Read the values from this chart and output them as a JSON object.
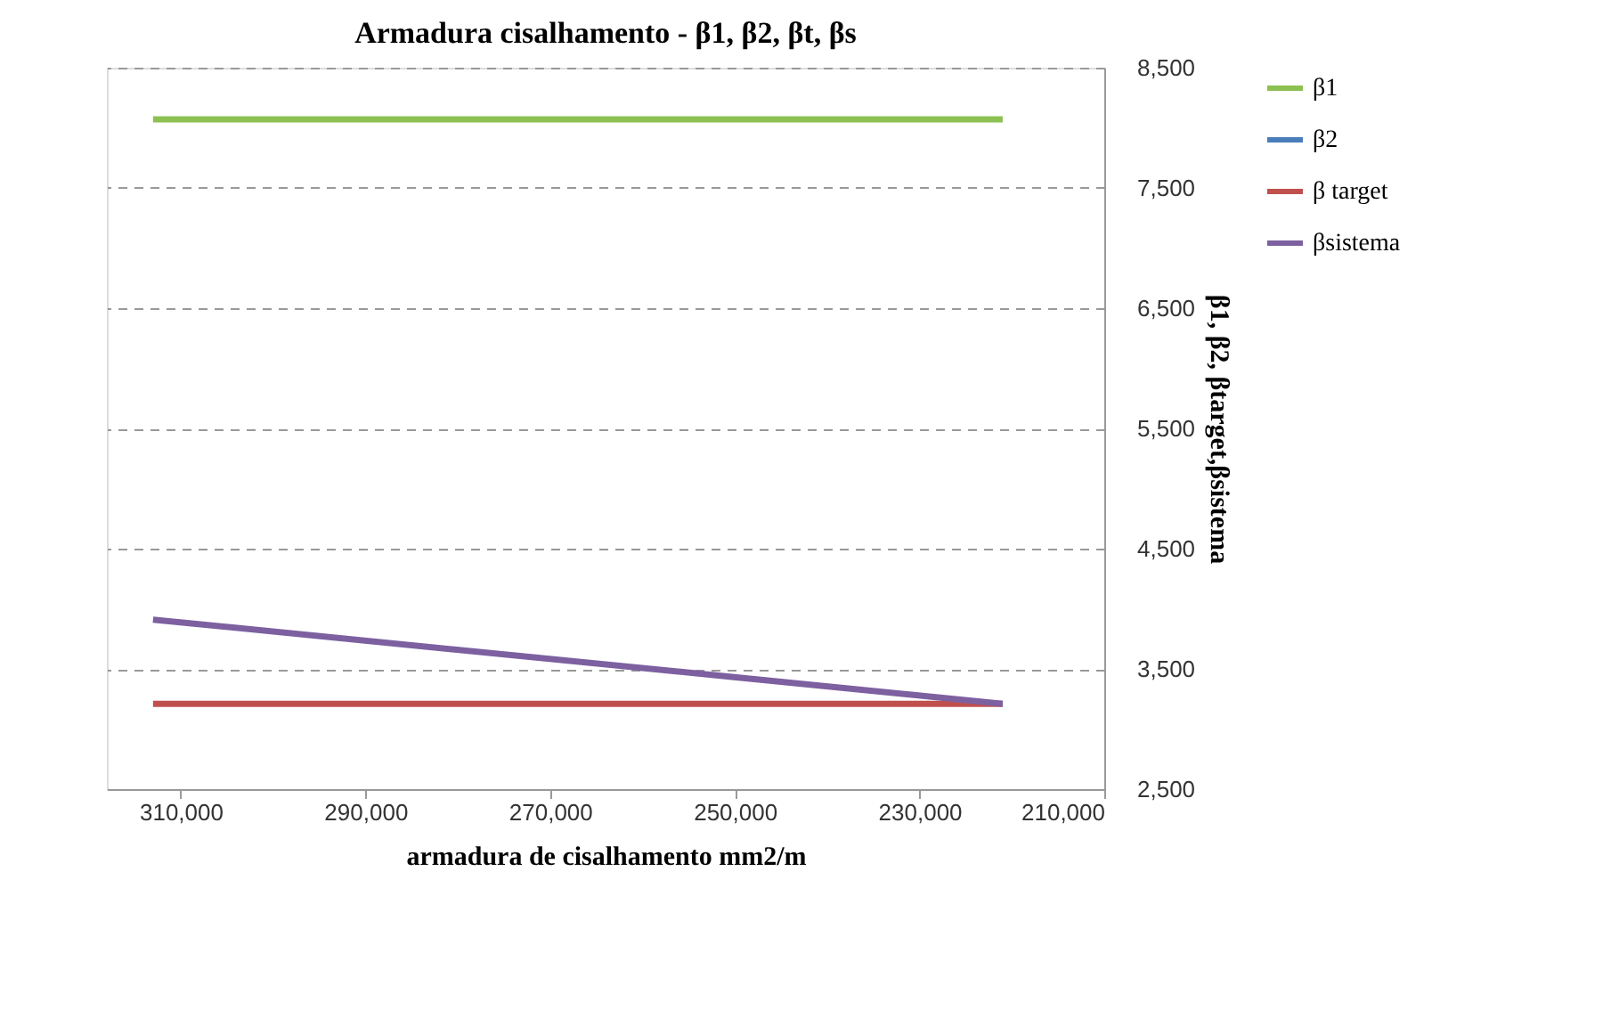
{
  "chart_data": {
    "type": "line",
    "title": "Armadura cisalhamento - β1, β2, βt, βs",
    "xlabel": "armadura de cisalhamento mm2/m",
    "ylabel": "β1, β2,  βtarget,βsistema",
    "x": [
      313000,
      221000
    ],
    "series": [
      {
        "name": "β1",
        "color": "#8cc152",
        "values": [
          8070,
          8070
        ]
      },
      {
        "name": "β2",
        "color": "#4a7ebb",
        "values": [
          null,
          null
        ]
      },
      {
        "name": "β target",
        "color": "#c0504d",
        "values": [
          3210,
          3210
        ]
      },
      {
        "name": "βsistema",
        "color": "#7d60a0",
        "values": [
          3910,
          3210
        ]
      }
    ],
    "xlim": [
      318000,
      210000
    ],
    "xticks": [
      {
        "value": 310000,
        "label": "310,000"
      },
      {
        "value": 290000,
        "label": "290,000"
      },
      {
        "value": 270000,
        "label": "270,000"
      },
      {
        "value": 250000,
        "label": "250,000"
      },
      {
        "value": 230000,
        "label": "230,000"
      },
      {
        "value": 210000,
        "label": "210,000"
      }
    ],
    "ylim": [
      2500,
      8500
    ],
    "yticks": [
      {
        "value": 2500,
        "label": "2,500"
      },
      {
        "value": 3500,
        "label": "3,500"
      },
      {
        "value": 4500,
        "label": "4,500"
      },
      {
        "value": 5500,
        "label": "5,500"
      },
      {
        "value": 6500,
        "label": "6,500"
      },
      {
        "value": 7500,
        "label": "7,500"
      },
      {
        "value": 8500,
        "label": "8,500"
      }
    ],
    "grid": "y",
    "legend": "right",
    "marker": "none",
    "line_style": "solid"
  }
}
